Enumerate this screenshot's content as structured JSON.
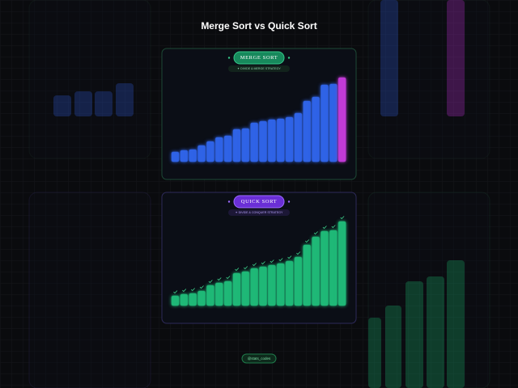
{
  "title": "Merge Sort vs Quick Sort",
  "chart_data": [
    {
      "type": "bar",
      "title": "MERGE SORT",
      "subtitle": "✦ DIVIDE & MERGE STRATEGY",
      "values": [
        12,
        14,
        15,
        20,
        25,
        30,
        32,
        40,
        41,
        48,
        50,
        52,
        53,
        55,
        60,
        75,
        80,
        95,
        96,
        104
      ],
      "colors": [
        "#2f63e6",
        "#2f63e6",
        "#2f63e6",
        "#2f63e6",
        "#2f63e6",
        "#2f63e6",
        "#2f63e6",
        "#2f63e6",
        "#2f63e6",
        "#2f63e6",
        "#2f63e6",
        "#2f63e6",
        "#2f63e6",
        "#2f63e6",
        "#2f63e6",
        "#2f63e6",
        "#2f63e6",
        "#2f63e6",
        "#2f63e6",
        "#c13ad6"
      ]
    },
    {
      "type": "bar",
      "title": "QUICK SORT",
      "subtitle": "✦ DIVIDE & CONQUER STRATEGY",
      "values": [
        12,
        14,
        15,
        18,
        25,
        28,
        30,
        40,
        42,
        46,
        48,
        50,
        52,
        55,
        60,
        75,
        85,
        92,
        93,
        104
      ],
      "colors": [
        "#1fb877",
        "#1fb877",
        "#1fb877",
        "#1fb877",
        "#1fb877",
        "#1fb877",
        "#1fb877",
        "#1fb877",
        "#1fb877",
        "#1fb877",
        "#1fb877",
        "#1fb877",
        "#1fb877",
        "#1fb877",
        "#1fb877",
        "#1fb877",
        "#1fb877",
        "#1fb877",
        "#1fb877",
        "#1fb877"
      ]
    }
  ],
  "footer": "@stats_codes"
}
